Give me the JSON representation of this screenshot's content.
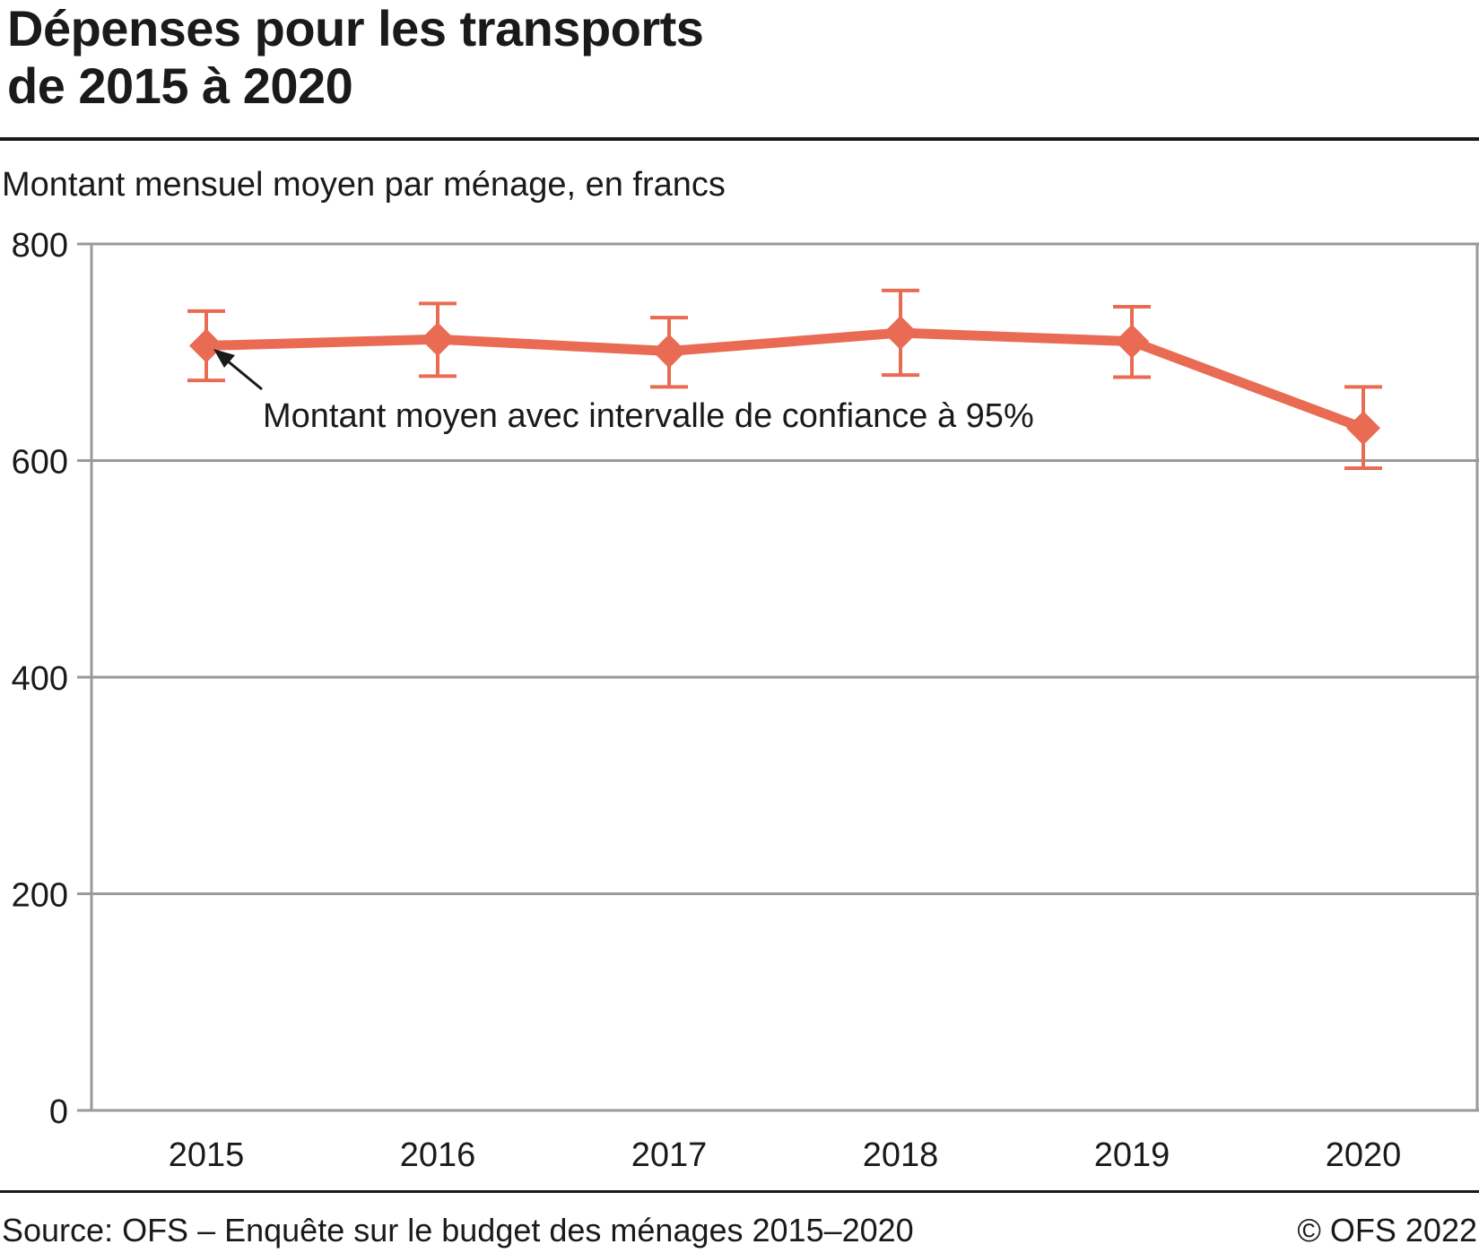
{
  "header": {
    "title_line1": "Dépenses pour les transports",
    "title_line2": "de 2015 à 2020",
    "subtitle": "Montant mensuel moyen par ménage, en francs"
  },
  "footer": {
    "source": "Source: OFS – Enquête sur le budget des ménages 2015–2020",
    "copyright": "© OFS 2022"
  },
  "colors": {
    "series": "#E96B53",
    "grid": "#9a9a9a",
    "text": "#1a1a1a"
  },
  "chart_data": {
    "type": "line",
    "title": "Dépenses pour les transports de 2015 à 2020",
    "subtitle": "Montant mensuel moyen par ménage, en francs",
    "xlabel": "",
    "ylabel": "Montant mensuel moyen par ménage, en francs",
    "ylim": [
      0,
      800
    ],
    "yticks": [
      0,
      200,
      400,
      600,
      800
    ],
    "grid": true,
    "categories": [
      "2015",
      "2016",
      "2017",
      "2018",
      "2019",
      "2020"
    ],
    "series": [
      {
        "name": "Montant moyen",
        "values": [
          706,
          712,
          701,
          718,
          710,
          630
        ],
        "ci_lower": [
          674,
          678,
          668,
          679,
          677,
          593
        ],
        "ci_upper": [
          738,
          745,
          732,
          757,
          742,
          668
        ]
      }
    ],
    "annotation": "Montant moyen avec intervalle de confiance à 95%"
  }
}
